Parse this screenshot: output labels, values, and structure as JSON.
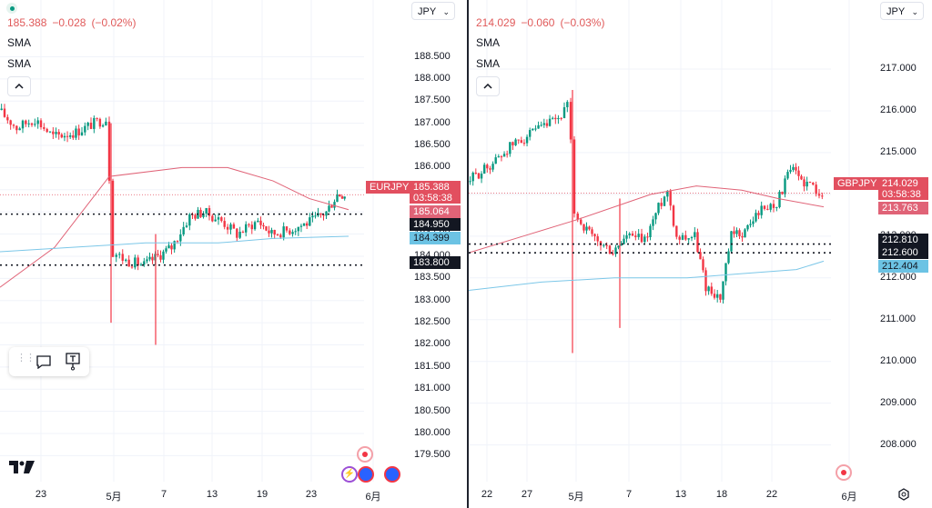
{
  "left": {
    "symbol": "EURJPY",
    "header": {
      "price": "185.388",
      "change": "−0.028",
      "change_pct": "(−0.02%)"
    },
    "indicators": [
      "SMA",
      "SMA"
    ],
    "currency": "JPY",
    "y_axis": [
      "188.500",
      "188.000",
      "187.500",
      "187.000",
      "186.500",
      "186.000",
      "185.500",
      "185.000",
      "184.500",
      "184.000",
      "183.500",
      "183.000",
      "182.500",
      "182.000",
      "181.500",
      "181.000",
      "180.500",
      "180.000",
      "179.500"
    ],
    "x_axis": [
      "23",
      "5月",
      "7",
      "13",
      "19",
      "23",
      "6月"
    ],
    "tags": {
      "symbol_tag": "EURJPY",
      "last_price": "185.388",
      "countdown": "03:58:38",
      "sma_red": "185.064",
      "line1": "184.950",
      "sma_blue": "184.399",
      "line2": "183.800"
    },
    "chart_data": {
      "type": "candlestick",
      "ylim": [
        179.2,
        188.9
      ],
      "horizontal_lines": [
        184.95,
        183.8
      ],
      "last_price": 185.388,
      "sma_values": [
        185.064,
        184.399
      ]
    }
  },
  "right": {
    "symbol": "GBPJPY",
    "header": {
      "price": "214.029",
      "change": "−0.060",
      "change_pct": "(−0.03%)"
    },
    "indicators": [
      "SMA",
      "SMA"
    ],
    "currency": "JPY",
    "y_axis": [
      "217.000",
      "216.000",
      "215.000",
      "214.000",
      "213.000",
      "212.000",
      "211.000",
      "210.000",
      "209.000",
      "208.000"
    ],
    "x_axis": [
      "22",
      "27",
      "5月",
      "7",
      "13",
      "18",
      "22",
      "6月"
    ],
    "tags": {
      "symbol_tag": "GBPJPY",
      "last_price": "214.029",
      "countdown": "03:58:38",
      "sma_red": "213.763",
      "line1": "212.810",
      "line2": "212.600",
      "sma_blue": "212.404"
    },
    "chart_data": {
      "type": "candlestick",
      "ylim": [
        207.6,
        217.5
      ],
      "horizontal_lines": [
        212.81,
        212.6
      ],
      "last_price": 214.029,
      "sma_values": [
        213.763,
        212.404
      ]
    }
  },
  "colors": {
    "up": "#089981",
    "down": "#f23645",
    "sma_red": "#e06377",
    "sma_blue": "#7cc7e8",
    "neutral": "#131722"
  },
  "toolbar_icons": [
    "grip-icon",
    "comment-icon",
    "text-note-icon"
  ]
}
